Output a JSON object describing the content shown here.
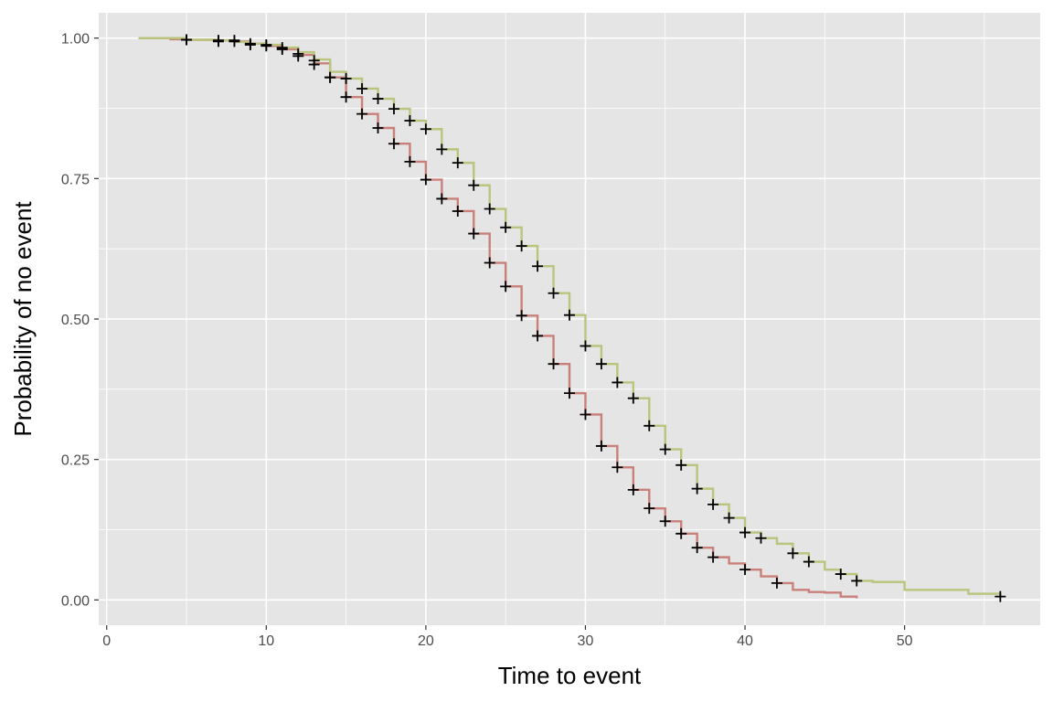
{
  "chart_data": {
    "type": "line",
    "step": true,
    "title": "",
    "xlabel": "Time to event",
    "ylabel": "Probability of no event",
    "xlim": [
      -0.5,
      58.5
    ],
    "ylim": [
      -0.045,
      1.045
    ],
    "x_ticks": [
      0,
      10,
      20,
      30,
      40,
      50
    ],
    "x_tick_labels": [
      "0",
      "10",
      "20",
      "30",
      "40",
      "50"
    ],
    "y_ticks": [
      0,
      0.25,
      0.5,
      0.75,
      1
    ],
    "y_tick_labels": [
      "0.00",
      "0.25",
      "0.50",
      "0.75",
      "1.00"
    ],
    "grid": true,
    "panel_background": "#e5e5e5",
    "grid_color": "#ffffff",
    "censor_color": "#000000",
    "legend": "none",
    "series": [
      {
        "color": "#c9807a",
        "x": [
          2,
          4,
          5,
          7,
          8,
          9,
          10,
          11,
          12,
          13,
          14,
          15,
          16,
          17,
          18,
          19,
          20,
          21,
          22,
          23,
          24,
          25,
          26,
          27,
          28,
          29,
          30,
          31,
          32,
          33,
          34,
          35,
          36,
          37,
          38,
          39,
          40,
          41,
          42,
          43,
          44,
          45,
          46,
          47
        ],
        "y": [
          1.0,
          0.998,
          0.997,
          0.996,
          0.994,
          0.99,
          0.986,
          0.98,
          0.97,
          0.955,
          0.93,
          0.895,
          0.865,
          0.84,
          0.812,
          0.78,
          0.748,
          0.714,
          0.692,
          0.652,
          0.6,
          0.558,
          0.506,
          0.47,
          0.42,
          0.368,
          0.33,
          0.274,
          0.236,
          0.196,
          0.163,
          0.14,
          0.118,
          0.093,
          0.076,
          0.065,
          0.054,
          0.042,
          0.03,
          0.018,
          0.014,
          0.013,
          0.006,
          0.003
        ],
        "censored": [
          [
            5,
            0.997
          ],
          [
            7,
            0.994
          ],
          [
            8,
            0.994
          ],
          [
            9,
            0.988
          ],
          [
            10,
            0.986
          ],
          [
            11,
            0.98
          ],
          [
            12,
            0.968
          ],
          [
            13,
            0.953
          ],
          [
            14,
            0.93
          ],
          [
            15,
            0.895
          ],
          [
            16,
            0.865
          ],
          [
            17,
            0.84
          ],
          [
            18,
            0.812
          ],
          [
            19,
            0.78
          ],
          [
            20,
            0.748
          ],
          [
            21,
            0.714
          ],
          [
            22,
            0.692
          ],
          [
            23,
            0.652
          ],
          [
            24,
            0.6
          ],
          [
            25,
            0.558
          ],
          [
            26,
            0.506
          ],
          [
            27,
            0.47
          ],
          [
            28,
            0.42
          ],
          [
            29,
            0.368
          ],
          [
            30,
            0.33
          ],
          [
            31,
            0.274
          ],
          [
            32,
            0.236
          ],
          [
            33,
            0.196
          ],
          [
            34,
            0.163
          ],
          [
            35,
            0.14
          ],
          [
            36,
            0.118
          ],
          [
            37,
            0.093
          ],
          [
            38,
            0.076
          ],
          [
            40,
            0.054
          ],
          [
            42,
            0.03
          ]
        ]
      },
      {
        "color": "#b9c47c",
        "x": [
          2,
          5,
          7,
          8,
          9,
          10,
          11,
          12,
          13,
          14,
          15,
          16,
          17,
          18,
          19,
          20,
          21,
          22,
          23,
          24,
          25,
          26,
          27,
          28,
          29,
          30,
          31,
          32,
          33,
          34,
          35,
          36,
          37,
          38,
          39,
          40,
          41,
          42,
          43,
          44,
          45,
          46,
          47,
          48,
          50,
          52,
          54,
          56
        ],
        "y": [
          1.0,
          0.997,
          0.996,
          0.993,
          0.99,
          0.988,
          0.983,
          0.975,
          0.962,
          0.94,
          0.928,
          0.91,
          0.892,
          0.874,
          0.853,
          0.838,
          0.802,
          0.778,
          0.738,
          0.696,
          0.663,
          0.63,
          0.594,
          0.546,
          0.507,
          0.452,
          0.42,
          0.387,
          0.359,
          0.31,
          0.268,
          0.24,
          0.198,
          0.17,
          0.146,
          0.12,
          0.11,
          0.1,
          0.083,
          0.068,
          0.054,
          0.046,
          0.034,
          0.032,
          0.018,
          0.018,
          0.011,
          0.006
        ],
        "censored": [
          [
            5,
            0.997
          ],
          [
            7,
            0.996
          ],
          [
            8,
            0.996
          ],
          [
            9,
            0.99
          ],
          [
            10,
            0.988
          ],
          [
            11,
            0.983
          ],
          [
            12,
            0.972
          ],
          [
            13,
            0.96
          ],
          [
            14,
            0.93
          ],
          [
            15,
            0.928
          ],
          [
            16,
            0.91
          ],
          [
            17,
            0.892
          ],
          [
            18,
            0.874
          ],
          [
            19,
            0.853
          ],
          [
            20,
            0.838
          ],
          [
            21,
            0.802
          ],
          [
            22,
            0.778
          ],
          [
            23,
            0.738
          ],
          [
            24,
            0.696
          ],
          [
            25,
            0.663
          ],
          [
            26,
            0.63
          ],
          [
            27,
            0.594
          ],
          [
            28,
            0.546
          ],
          [
            29,
            0.507
          ],
          [
            30,
            0.452
          ],
          [
            31,
            0.42
          ],
          [
            32,
            0.387
          ],
          [
            33,
            0.359
          ],
          [
            34,
            0.31
          ],
          [
            35,
            0.268
          ],
          [
            36,
            0.24
          ],
          [
            37,
            0.198
          ],
          [
            38,
            0.17
          ],
          [
            39,
            0.146
          ],
          [
            40,
            0.12
          ],
          [
            41,
            0.11
          ],
          [
            43,
            0.083
          ],
          [
            44,
            0.068
          ],
          [
            46,
            0.046
          ],
          [
            47,
            0.034
          ],
          [
            56,
            0.006
          ]
        ]
      }
    ]
  }
}
